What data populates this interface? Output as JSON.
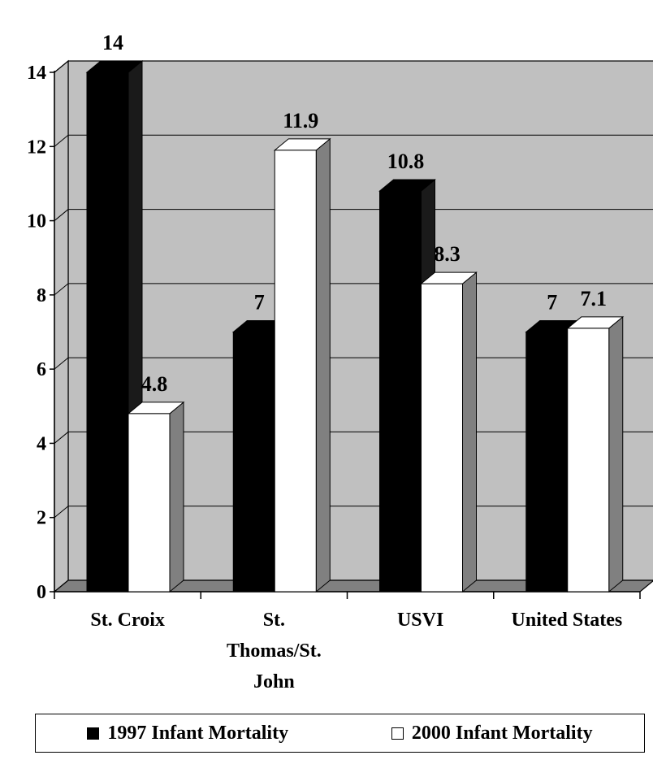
{
  "chart_data": {
    "type": "bar",
    "categories": [
      "St. Croix",
      "St. Thomas/St. John",
      "USVI",
      "United States"
    ],
    "category_lines": [
      [
        "St. Croix"
      ],
      [
        "St.",
        "Thomas/St.",
        "John"
      ],
      [
        "USVI"
      ],
      [
        "United States"
      ]
    ],
    "series": [
      {
        "name": "1997 Infant Mortality",
        "values": [
          14,
          7,
          10.8,
          7
        ],
        "labels": [
          "14",
          "7",
          "10.8",
          "7"
        ],
        "color": "#000000",
        "side_color": "#1a1a1a"
      },
      {
        "name": "2000 Infant Mortality",
        "values": [
          4.8,
          11.9,
          8.3,
          7.1
        ],
        "labels": [
          "4.8",
          "11.9",
          "8.3",
          "7.1"
        ],
        "color": "#ffffff",
        "side_color": "#808080"
      }
    ],
    "ylim": [
      0,
      14
    ],
    "yticks": [
      0,
      2,
      4,
      6,
      8,
      10,
      12,
      14
    ],
    "ytick_labels": [
      "0",
      "2",
      "4",
      "6",
      "8",
      "10",
      "12",
      "14"
    ],
    "grid": true,
    "style": "3d-column",
    "colors": {
      "wall": "#c0c0c0",
      "floor": "#808080",
      "grid": "#000000"
    },
    "legend_position": "bottom"
  }
}
